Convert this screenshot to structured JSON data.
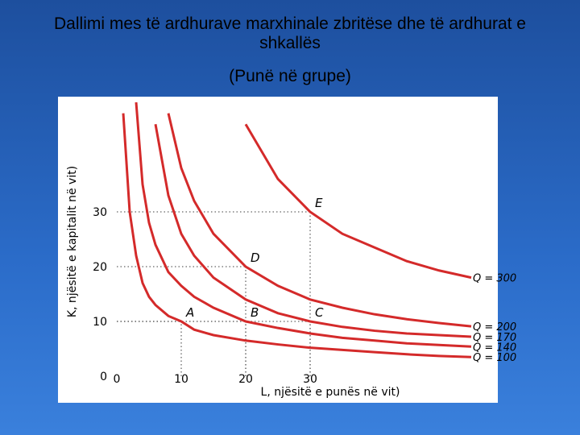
{
  "chart_data": {
    "type": "line",
    "title": "Dallimi mes të ardhurave marxhinale zbritëse dhe të ardhurat e shkallës",
    "subtitle": "(Punë në grupe)",
    "x_label": "L, njësitë e punës në vit)",
    "y_label": "K, njësitë e kapitalit në vit)",
    "x": [
      1,
      2,
      3,
      4,
      5,
      6,
      8,
      10,
      12,
      15,
      20,
      25,
      30,
      35,
      40,
      45,
      50,
      55
    ],
    "series": [
      {
        "name": "Q = 100",
        "color": "#d42a2a",
        "values": [
          48,
          30,
          22,
          17,
          14.5,
          13,
          11,
          10,
          8.5,
          7.5,
          6.5,
          5.8,
          5.2,
          4.8,
          4.4,
          4,
          3.7,
          3.5
        ]
      },
      {
        "name": "Q = 140",
        "color": "#d42a2a",
        "values": [
          null,
          null,
          50,
          35,
          28,
          24,
          19,
          16.5,
          14.5,
          12.5,
          10,
          8.8,
          7.8,
          7,
          6.5,
          6,
          5.7,
          5.4
        ]
      },
      {
        "name": "Q = 170",
        "color": "#d42a2a",
        "values": [
          null,
          null,
          null,
          null,
          null,
          46,
          33,
          26,
          22,
          18,
          14,
          11.5,
          10,
          9,
          8.3,
          7.8,
          7.5,
          7.2
        ]
      },
      {
        "name": "Q = 200",
        "color": "#d42a2a",
        "values": [
          null,
          null,
          null,
          null,
          null,
          null,
          48,
          38,
          32,
          26,
          20,
          16.5,
          14,
          12.5,
          11.3,
          10.4,
          9.7,
          9.1
        ]
      },
      {
        "name": "Q = 300",
        "color": "#d42a2a",
        "values": [
          null,
          null,
          null,
          null,
          null,
          null,
          null,
          null,
          null,
          null,
          46,
          36,
          30,
          26,
          23.5,
          21,
          19.3,
          18
        ]
      }
    ],
    "points": [
      {
        "label": "A",
        "x": 10,
        "y": 10
      },
      {
        "label": "B",
        "x": 20,
        "y": 10
      },
      {
        "label": "C",
        "x": 30,
        "y": 10
      },
      {
        "label": "D",
        "x": 20,
        "y": 20
      },
      {
        "label": "E",
        "x": 30,
        "y": 30
      }
    ],
    "xlim": [
      0,
      58
    ],
    "ylim": [
      0,
      50
    ],
    "xticks": [
      0,
      10,
      20,
      30
    ],
    "yticks": [
      0,
      10,
      20,
      30
    ]
  }
}
